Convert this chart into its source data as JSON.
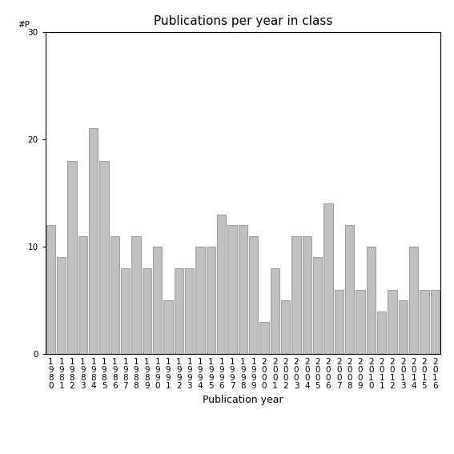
{
  "categories": [
    "1980",
    "1981",
    "1982",
    "1983",
    "1984",
    "1985",
    "1986",
    "1987",
    "1988",
    "1989",
    "1990",
    "1991",
    "1992",
    "1993",
    "1994",
    "1995",
    "1996",
    "1997",
    "1998",
    "1999",
    "2000",
    "2001",
    "2002",
    "2003",
    "2004",
    "2005",
    "2006",
    "2007",
    "2008",
    "2009",
    "2010",
    "2011",
    "2012",
    "2013",
    "2014",
    "2015",
    "2016"
  ],
  "values": [
    12,
    9,
    18,
    11,
    21,
    18,
    11,
    8,
    11,
    8,
    10,
    5,
    8,
    8,
    10,
    10,
    13,
    12,
    12,
    11,
    3,
    8,
    5,
    11,
    11,
    9,
    14,
    6,
    12,
    6,
    10,
    4,
    6,
    5,
    10,
    6,
    6
  ],
  "bar_color": "#c0c0c0",
  "bar_edgecolor": "#808080",
  "title": "Publications per year in class",
  "xlabel": "Publication year",
  "ylabel_label": "#P",
  "ylim": [
    0,
    30
  ],
  "yticks": [
    0,
    10,
    20,
    30
  ],
  "background_color": "#ffffff",
  "title_fontsize": 11,
  "label_fontsize": 9,
  "tick_fontsize": 7.5
}
